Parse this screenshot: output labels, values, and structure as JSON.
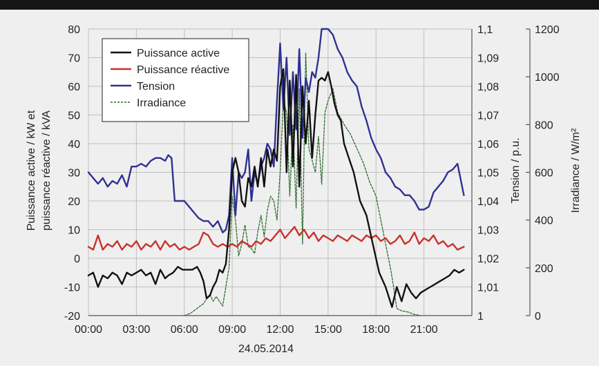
{
  "chart_data": {
    "type": "line",
    "xlabel": "24.05.2014",
    "x_ticks": [
      "00:00",
      "03:00",
      "06:00",
      "09:00",
      "12:00",
      "15:00",
      "18:00",
      "21:00"
    ],
    "x_range_hours": [
      0,
      24
    ],
    "left_axis": {
      "label_line1": "Puissance active / kW et",
      "label_line2": "puissance réactive / kVA",
      "range": [
        -20,
        80
      ],
      "ticks": [
        "80",
        "70",
        "60",
        "50",
        "40",
        "30",
        "20",
        "10",
        "0",
        "-10",
        "-20"
      ]
    },
    "mid_axis": {
      "label": "Tension / p.u.",
      "range": [
        1.0,
        1.1
      ],
      "ticks": [
        "1,1",
        "1,09",
        "1,08",
        "1,07",
        "1,06",
        "1,05",
        "1,04",
        "1,03",
        "1,02",
        "1,01",
        "1"
      ]
    },
    "right_axis": {
      "label": "Irradiance / W/m²",
      "range": [
        0,
        1200
      ],
      "ticks": [
        "1200",
        "1000",
        "800",
        "600",
        "400",
        "200",
        "0"
      ]
    },
    "grid": true,
    "legend_position": "top-left",
    "series": [
      {
        "name": "Puissance active",
        "axis": "left",
        "color": "#111111",
        "style": "solid",
        "x": [
          0,
          0.3,
          0.6,
          0.9,
          1.2,
          1.5,
          1.8,
          2.1,
          2.4,
          2.7,
          3.0,
          3.3,
          3.6,
          3.9,
          4.2,
          4.5,
          4.8,
          5.0,
          5.3,
          5.6,
          5.9,
          6.2,
          6.5,
          6.8,
          7.0,
          7.2,
          7.4,
          7.6,
          7.8,
          8.0,
          8.2,
          8.4,
          8.6,
          8.8,
          9.0,
          9.2,
          9.4,
          9.6,
          9.8,
          10.0,
          10.2,
          10.4,
          10.6,
          10.8,
          11.0,
          11.2,
          11.4,
          11.6,
          11.8,
          12.0,
          12.2,
          12.4,
          12.6,
          12.8,
          13.0,
          13.2,
          13.4,
          13.6,
          13.8,
          14.0,
          14.2,
          14.4,
          14.6,
          14.8,
          15.0,
          15.2,
          15.4,
          15.6,
          15.8,
          16.0,
          16.3,
          16.6,
          17.0,
          17.4,
          17.8,
          18.2,
          18.6,
          19.0,
          19.3,
          19.6,
          19.9,
          20.2,
          20.5,
          20.8,
          21.1,
          21.4,
          21.7,
          22.0,
          22.3,
          22.6,
          22.9,
          23.2,
          23.5
        ],
        "y": [
          -6,
          -5,
          -10,
          -6,
          -7,
          -5,
          -6,
          -9,
          -5,
          -6,
          -5,
          -4,
          -6,
          -5,
          -9,
          -4,
          -7,
          -6,
          -5,
          -3,
          -4,
          -4,
          -4,
          -3,
          -5,
          -8,
          -14,
          -13,
          -10,
          -8,
          -4,
          -5,
          -2,
          10,
          30,
          35,
          30,
          20,
          18,
          28,
          25,
          32,
          25,
          35,
          25,
          38,
          32,
          38,
          34,
          60,
          66,
          30,
          62,
          32,
          64,
          25,
          60,
          40,
          55,
          35,
          50,
          62,
          63,
          62,
          65,
          60,
          54,
          50,
          48,
          40,
          35,
          30,
          20,
          15,
          5,
          -5,
          -10,
          -17,
          -10,
          -15,
          -9,
          -12,
          -14,
          -12,
          -11,
          -10,
          -9,
          -8,
          -7,
          -6,
          -4,
          -5,
          -4
        ]
      },
      {
        "name": "Puissance réactive",
        "axis": "left",
        "color": "#c8322a",
        "style": "solid",
        "x": [
          0,
          0.3,
          0.6,
          0.9,
          1.2,
          1.5,
          1.8,
          2.1,
          2.4,
          2.7,
          3.0,
          3.3,
          3.6,
          3.9,
          4.2,
          4.5,
          4.8,
          5.1,
          5.4,
          5.7,
          6.0,
          6.3,
          6.6,
          6.9,
          7.2,
          7.5,
          7.8,
          8.1,
          8.4,
          8.7,
          9.0,
          9.3,
          9.6,
          9.9,
          10.2,
          10.5,
          10.8,
          11.1,
          11.4,
          11.7,
          12.0,
          12.3,
          12.6,
          12.9,
          13.2,
          13.5,
          13.8,
          14.1,
          14.4,
          14.7,
          15.0,
          15.3,
          15.6,
          15.9,
          16.2,
          16.5,
          16.8,
          17.1,
          17.4,
          17.7,
          18.0,
          18.3,
          18.6,
          18.9,
          19.2,
          19.5,
          19.8,
          20.1,
          20.4,
          20.7,
          21.0,
          21.3,
          21.6,
          21.9,
          22.2,
          22.5,
          22.8,
          23.1,
          23.5
        ],
        "y": [
          4,
          3,
          8,
          3,
          5,
          4,
          6,
          3,
          5,
          4,
          6,
          3,
          5,
          4,
          6,
          3,
          6,
          4,
          5,
          3,
          4,
          3,
          4,
          5,
          9,
          8,
          5,
          4,
          5,
          4,
          5,
          4,
          6,
          5,
          4,
          6,
          5,
          7,
          6,
          8,
          10,
          7,
          9,
          11,
          8,
          10,
          7,
          9,
          6,
          8,
          7,
          6,
          8,
          7,
          6,
          8,
          7,
          6,
          8,
          7,
          8,
          6,
          7,
          5,
          6,
          8,
          5,
          6,
          9,
          5,
          7,
          6,
          8,
          5,
          6,
          4,
          5,
          3,
          4
        ]
      },
      {
        "name": "Tension",
        "axis": "mid",
        "color": "#2e3192",
        "style": "solid",
        "x": [
          0,
          0.3,
          0.6,
          0.9,
          1.2,
          1.5,
          1.8,
          2.1,
          2.4,
          2.7,
          3.0,
          3.3,
          3.6,
          3.9,
          4.2,
          4.5,
          4.8,
          5.0,
          5.2,
          5.4,
          5.7,
          6.0,
          6.3,
          6.6,
          6.9,
          7.2,
          7.5,
          7.8,
          8.1,
          8.4,
          8.6,
          8.8,
          9.0,
          9.2,
          9.4,
          9.6,
          9.8,
          10.0,
          10.2,
          10.4,
          10.6,
          10.8,
          11.0,
          11.2,
          11.4,
          11.6,
          11.8,
          12.0,
          12.2,
          12.4,
          12.6,
          12.8,
          13.0,
          13.2,
          13.4,
          13.6,
          13.8,
          14.0,
          14.2,
          14.4,
          14.6,
          14.8,
          15.0,
          15.3,
          15.6,
          15.9,
          16.2,
          16.5,
          16.8,
          17.1,
          17.4,
          17.7,
          18.0,
          18.3,
          18.6,
          18.9,
          19.2,
          19.5,
          19.8,
          20.1,
          20.4,
          20.7,
          21.0,
          21.3,
          21.6,
          21.9,
          22.2,
          22.5,
          22.8,
          23.1,
          23.5
        ],
        "y": [
          1.05,
          1.048,
          1.046,
          1.048,
          1.045,
          1.047,
          1.046,
          1.049,
          1.045,
          1.052,
          1.052,
          1.053,
          1.052,
          1.054,
          1.055,
          1.055,
          1.054,
          1.056,
          1.055,
          1.04,
          1.04,
          1.04,
          1.038,
          1.036,
          1.034,
          1.033,
          1.033,
          1.031,
          1.033,
          1.029,
          1.03,
          1.035,
          1.055,
          1.035,
          1.05,
          1.048,
          1.05,
          1.058,
          1.04,
          1.05,
          1.046,
          1.052,
          1.055,
          1.06,
          1.058,
          1.052,
          1.075,
          1.095,
          1.072,
          1.09,
          1.063,
          1.085,
          1.065,
          1.093,
          1.062,
          1.083,
          1.078,
          1.085,
          1.083,
          1.09,
          1.1,
          1.1,
          1.1,
          1.098,
          1.093,
          1.09,
          1.085,
          1.082,
          1.08,
          1.073,
          1.068,
          1.062,
          1.058,
          1.055,
          1.05,
          1.048,
          1.045,
          1.044,
          1.042,
          1.042,
          1.04,
          1.037,
          1.037,
          1.038,
          1.043,
          1.045,
          1.047,
          1.05,
          1.051,
          1.053,
          1.042
        ]
      },
      {
        "name": "Irradiance",
        "axis": "right",
        "color": "#2f6b2f",
        "style": "dashed",
        "x": [
          6.0,
          6.4,
          6.8,
          7.2,
          7.4,
          7.6,
          7.8,
          8.0,
          8.2,
          8.4,
          8.6,
          8.8,
          9.0,
          9.2,
          9.4,
          9.6,
          9.8,
          10.0,
          10.2,
          10.4,
          10.6,
          10.8,
          11.0,
          11.2,
          11.4,
          11.6,
          11.8,
          12.0,
          12.2,
          12.4,
          12.6,
          12.8,
          13.0,
          13.2,
          13.4,
          13.6,
          13.8,
          14.0,
          14.2,
          14.4,
          14.6,
          14.8,
          15.0,
          15.3,
          15.6,
          16.0,
          16.4,
          16.8,
          17.2,
          17.6,
          18.0,
          18.3,
          18.6,
          18.9,
          19.1,
          19.3,
          19.6,
          20.0,
          20.4,
          20.8
        ],
        "y": [
          0,
          10,
          30,
          50,
          70,
          90,
          60,
          80,
          60,
          40,
          120,
          200,
          500,
          400,
          250,
          300,
          380,
          290,
          280,
          260,
          350,
          420,
          330,
          440,
          500,
          480,
          400,
          600,
          900,
          850,
          500,
          800,
          450,
          950,
          300,
          1100,
          700,
          650,
          600,
          750,
          550,
          850,
          900,
          950,
          850,
          800,
          760,
          700,
          640,
          560,
          500,
          400,
          300,
          200,
          120,
          30,
          20,
          15,
          5,
          0
        ]
      }
    ]
  }
}
